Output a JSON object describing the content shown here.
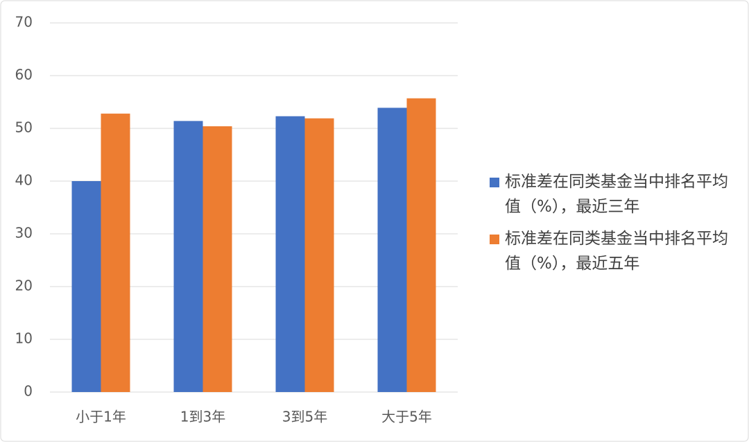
{
  "chart_data": {
    "type": "bar",
    "categories": [
      "小于1年",
      "1到3年",
      "3到5年",
      "大于5年"
    ],
    "series": [
      {
        "name": "标准差在同类基金当中排名平均值（%），最近三年",
        "color": "#4472c4",
        "values": [
          40,
          51.4,
          52.3,
          53.9
        ]
      },
      {
        "name": "标准差在同类基金当中排名平均值（%），最近五年",
        "color": "#ed7d31",
        "values": [
          52.8,
          50.4,
          51.9,
          55.7
        ]
      }
    ],
    "ylim": [
      0,
      70
    ],
    "yticks": [
      0,
      10,
      20,
      30,
      40,
      50,
      60,
      70
    ],
    "grid": true,
    "legend": "right"
  }
}
